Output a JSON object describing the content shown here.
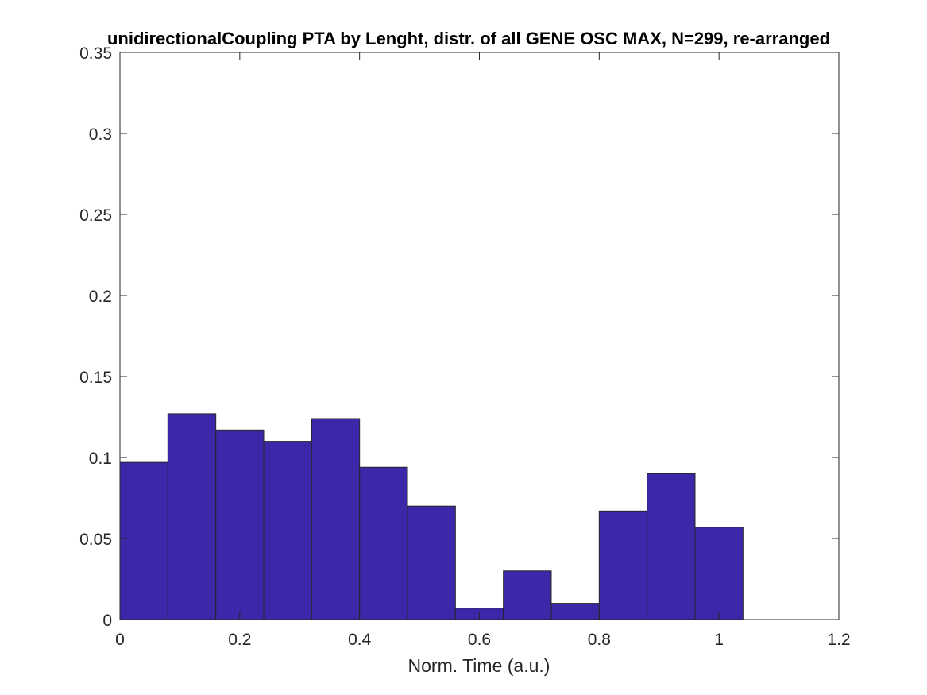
{
  "chart_data": {
    "type": "bar",
    "title": "unidirectionalCoupling PTA by Lenght, distr. of all GENE OSC MAX, N=299, re-arranged",
    "xlabel": "Norm. Time (a.u.)",
    "ylabel": "",
    "xlim": [
      0,
      1.2
    ],
    "ylim": [
      0,
      0.35
    ],
    "xticks": [
      "0",
      "0.2",
      "0.4",
      "0.6",
      "0.8",
      "1",
      "1.2"
    ],
    "yticks": [
      "0",
      "0.05",
      "0.1",
      "0.15",
      "0.2",
      "0.25",
      "0.3",
      "0.35"
    ],
    "bin_width": 0.08,
    "bin_edges": [
      0,
      0.08,
      0.16,
      0.24,
      0.32,
      0.4,
      0.48,
      0.56,
      0.64,
      0.72,
      0.8,
      0.88,
      0.96,
      1.04
    ],
    "values": [
      0.097,
      0.127,
      0.117,
      0.11,
      0.124,
      0.094,
      0.07,
      0.007,
      0.03,
      0.01,
      0.067,
      0.09,
      0.057
    ],
    "bar_color": "#3d27a8",
    "grid": false,
    "legend": "none"
  }
}
